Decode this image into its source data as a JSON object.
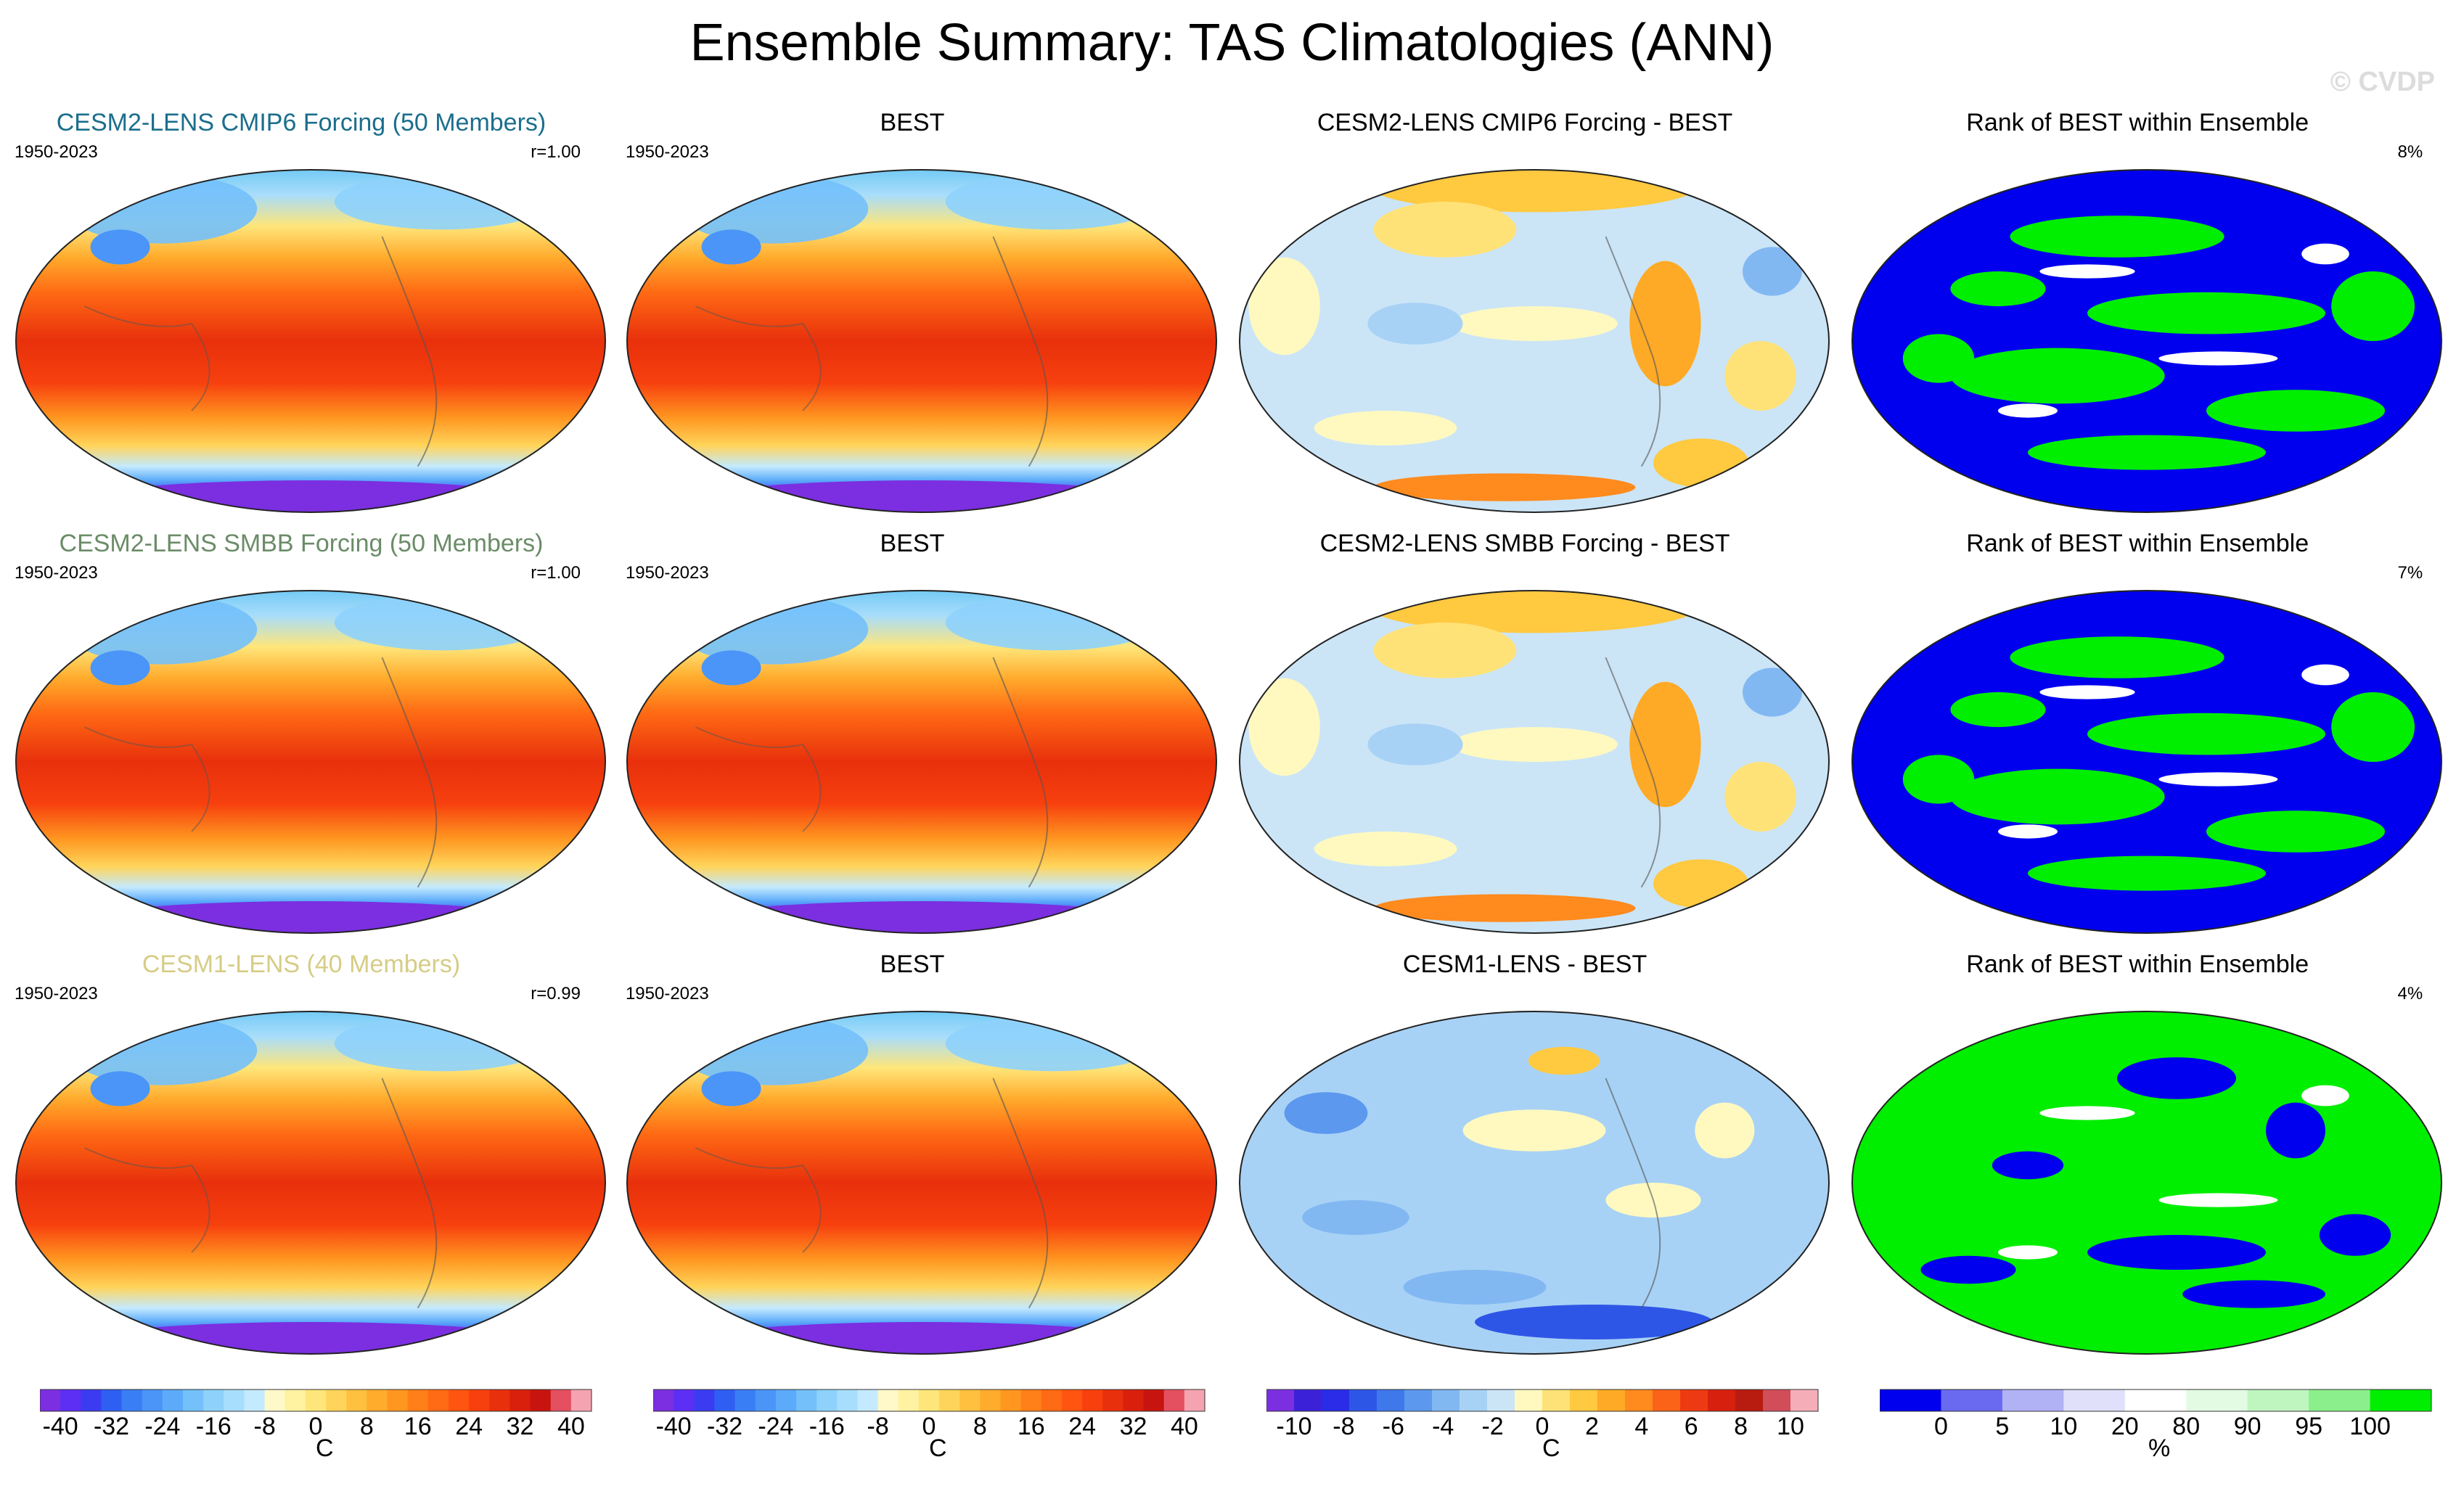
{
  "title": "Ensemble Summary: TAS Climatologies (ANN)",
  "watermark": "© CVDP",
  "rows": [
    {
      "ensemble": {
        "title": "CESM2-LENS CMIP6 Forcing (50 Members)",
        "title_color": "#1b6e8c",
        "years": "1950-2023",
        "corr": "r=1.00"
      },
      "obs": {
        "title": "BEST",
        "years": "1950-2023"
      },
      "diff": {
        "title": "CESM2-LENS CMIP6 Forcing - BEST"
      },
      "rank": {
        "title": "Rank of BEST within Ensemble",
        "pct": "8%"
      }
    },
    {
      "ensemble": {
        "title": "CESM2-LENS SMBB Forcing (50 Members)",
        "title_color": "#6b8c68",
        "years": "1950-2023",
        "corr": "r=1.00"
      },
      "obs": {
        "title": "BEST",
        "years": "1950-2023"
      },
      "diff": {
        "title": "CESM2-LENS SMBB Forcing - BEST"
      },
      "rank": {
        "title": "Rank of BEST within Ensemble",
        "pct": "7%"
      }
    },
    {
      "ensemble": {
        "title": "CESM1-LENS (40 Members)",
        "title_color": "#d6cc86",
        "years": "1950-2023",
        "corr": "r=0.99"
      },
      "obs": {
        "title": "BEST",
        "years": "1950-2023"
      },
      "diff": {
        "title": "CESM1-LENS - BEST"
      },
      "rank": {
        "title": "Rank of BEST within Ensemble",
        "pct": "4%"
      }
    }
  ],
  "chart_data": {
    "type": "heatmap",
    "map_projection": "robinson",
    "colorbars": [
      {
        "id": "clim",
        "unit": "C",
        "ticks": [
          "-40",
          "-32",
          "-24",
          "-16",
          "-8",
          "0",
          "8",
          "16",
          "24",
          "32",
          "40"
        ],
        "colors": [
          "#7b2fe0",
          "#5d2ef3",
          "#3b3cf2",
          "#2f5ff2",
          "#3a7ef5",
          "#4a95f7",
          "#5cabfa",
          "#73c0fb",
          "#8ed2fc",
          "#a8defd",
          "#c4eaff",
          "#fff8c8",
          "#fff2a0",
          "#ffe67a",
          "#ffd45a",
          "#ffc040",
          "#ffab2c",
          "#ff9620",
          "#ff7f18",
          "#ff6a14",
          "#ff5510",
          "#f7400e",
          "#e8300c",
          "#d9200c",
          "#c8140e",
          "#e45060",
          "#f5a3b0"
        ]
      },
      {
        "id": "diff",
        "unit": "C",
        "ticks": [
          "-10",
          "-8",
          "-6",
          "-4",
          "-2",
          "0",
          "2",
          "4",
          "6",
          "8",
          "10"
        ],
        "colors": [
          "#7b2fe0",
          "#3b22d8",
          "#2a2ce8",
          "#2e56e6",
          "#3f78ea",
          "#5c98ee",
          "#82b8f2",
          "#a8d2f5",
          "#cbe5f7",
          "#fff9c0",
          "#ffe277",
          "#ffc940",
          "#ffaa26",
          "#ff8a1e",
          "#fb6318",
          "#ee3a12",
          "#d8200e",
          "#b81b0f",
          "#d24d5a",
          "#f5aeb8"
        ]
      },
      {
        "id": "rank",
        "unit": "%",
        "ticks": [
          "0",
          "5",
          "10",
          "20",
          "80",
          "90",
          "95",
          "100"
        ],
        "colors": [
          "#0000ee",
          "#6a6af0",
          "#b1b1f6",
          "#e0e0fa",
          "#ffffff",
          "#e2fbe2",
          "#bff5bf",
          "#8bf08b",
          "#00ee00"
        ]
      }
    ]
  }
}
